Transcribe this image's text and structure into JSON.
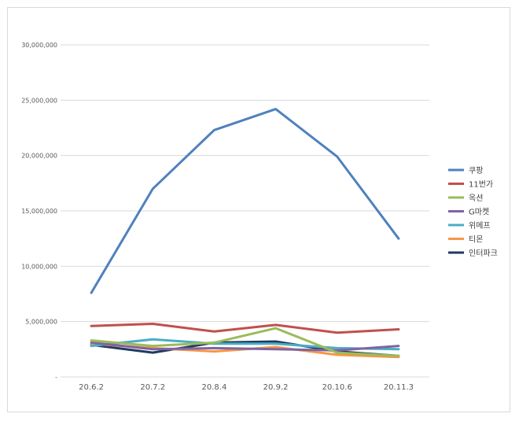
{
  "chart_data": {
    "type": "line",
    "title": "",
    "xlabel": "",
    "ylabel": "",
    "categories": [
      "20.6.2",
      "20.7.2",
      "20.8.4",
      "20.9.2",
      "20.10.6",
      "20.11.3"
    ],
    "ylim": [
      0,
      30000000
    ],
    "yticks": [
      0,
      5000000,
      10000000,
      15000000,
      20000000,
      25000000,
      30000000
    ],
    "ytick_labels": [
      "-",
      "5,000,000",
      "10,000,000",
      "15,000,000",
      "20,000,000",
      "25,000,000",
      "30,000,000"
    ],
    "grid": true,
    "legend_position": "right",
    "series": [
      {
        "name": "쿠팡",
        "color": "#4f81bd",
        "values": [
          7600000,
          17000000,
          22300000,
          24200000,
          19900000,
          12500000
        ]
      },
      {
        "name": "11번가",
        "color": "#c0504d",
        "values": [
          4600000,
          4800000,
          4100000,
          4700000,
          4000000,
          4300000
        ]
      },
      {
        "name": "옥션",
        "color": "#9bbb59",
        "values": [
          3300000,
          2800000,
          3100000,
          4400000,
          2200000,
          1900000
        ]
      },
      {
        "name": "G마켓",
        "color": "#8064a2",
        "values": [
          3100000,
          2500000,
          2600000,
          2500000,
          2400000,
          2800000
        ]
      },
      {
        "name": "위메프",
        "color": "#4bacc6",
        "values": [
          2800000,
          3400000,
          3000000,
          3000000,
          2600000,
          2500000
        ]
      },
      {
        "name": "티몬",
        "color": "#f79646",
        "values": [
          3000000,
          2600000,
          2300000,
          2700000,
          2000000,
          1800000
        ]
      },
      {
        "name": "인터파크",
        "color": "#1f3a5f",
        "values": [
          2900000,
          2200000,
          3100000,
          3200000,
          2300000,
          1900000
        ]
      }
    ]
  }
}
